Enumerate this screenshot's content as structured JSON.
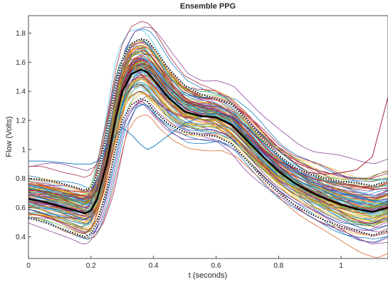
{
  "chart_data": {
    "type": "line",
    "title": "Ensemble PPG",
    "xlabel": "t (seconds)",
    "ylabel": "Flow (Volts)",
    "xlim": [
      0,
      1.15
    ],
    "ylim": [
      0.25,
      1.92
    ],
    "xticks": [
      {
        "value": 0,
        "label": "0"
      },
      {
        "value": 0.2,
        "label": "0.2"
      },
      {
        "value": 0.4,
        "label": "0.4"
      },
      {
        "value": 0.6,
        "label": "0.6"
      },
      {
        "value": 0.8,
        "label": "0.8"
      },
      {
        "value": 1.0,
        "label": "1"
      }
    ],
    "yticks": [
      {
        "value": 0.4,
        "label": "0.4"
      },
      {
        "value": 0.6,
        "label": "0.6"
      },
      {
        "value": 0.8,
        "label": "0.8"
      },
      {
        "value": 1.0,
        "label": "1"
      },
      {
        "value": 1.2,
        "label": "1.2"
      },
      {
        "value": 1.4,
        "label": "1.4"
      },
      {
        "value": 1.6,
        "label": "1.6"
      },
      {
        "value": 1.8,
        "label": "1.8"
      }
    ],
    "grid": false,
    "legend": "none",
    "colors": [
      "#0072bd",
      "#d95319",
      "#edb120",
      "#7e2f8e",
      "#77ac30",
      "#4dbeee",
      "#a2142f"
    ],
    "summary_x": [
      0,
      0.05,
      0.1,
      0.15,
      0.18,
      0.2,
      0.22,
      0.25,
      0.28,
      0.3,
      0.33,
      0.36,
      0.38,
      0.4,
      0.45,
      0.5,
      0.55,
      0.6,
      0.65,
      0.7,
      0.75,
      0.8,
      0.85,
      0.9,
      0.95,
      1.0,
      1.05,
      1.1,
      1.15
    ],
    "summary_series": [
      {
        "style": "mean",
        "color": "#000000",
        "values": [
          0.66,
          0.64,
          0.61,
          0.58,
          0.56,
          0.58,
          0.66,
          0.9,
          1.22,
          1.4,
          1.52,
          1.55,
          1.53,
          1.48,
          1.35,
          1.26,
          1.23,
          1.22,
          1.17,
          1.06,
          0.95,
          0.85,
          0.77,
          0.71,
          0.66,
          0.62,
          0.59,
          0.57,
          0.6
        ]
      },
      {
        "style": "upper-dotted",
        "color": "#000000",
        "values": [
          0.8,
          0.79,
          0.77,
          0.74,
          0.72,
          0.74,
          0.82,
          1.1,
          1.45,
          1.62,
          1.73,
          1.76,
          1.75,
          1.7,
          1.55,
          1.44,
          1.38,
          1.35,
          1.31,
          1.2,
          1.07,
          0.96,
          0.88,
          0.83,
          0.8,
          0.78,
          0.77,
          0.75,
          0.78
        ]
      },
      {
        "style": "lower-dotted",
        "color": "#000000",
        "values": [
          0.53,
          0.5,
          0.46,
          0.42,
          0.4,
          0.42,
          0.5,
          0.72,
          1.02,
          1.2,
          1.31,
          1.35,
          1.33,
          1.27,
          1.17,
          1.12,
          1.1,
          1.09,
          1.04,
          0.92,
          0.8,
          0.7,
          0.62,
          0.56,
          0.51,
          0.47,
          0.44,
          0.41,
          0.44
        ]
      },
      {
        "style": "outlier",
        "color": "#0072bd",
        "values": [
          0.92,
          0.92,
          0.91,
          0.9,
          0.9,
          0.9,
          0.92,
          1.01,
          1.1,
          1.15,
          1.1,
          1.03,
          1.0,
          1.02,
          1.1,
          1.18,
          1.22,
          1.25,
          1.23,
          1.15,
          1.05,
          0.95,
          0.85,
          0.78,
          0.73,
          0.7,
          0.68,
          0.65,
          0.63
        ]
      },
      {
        "style": "outlier",
        "color": "#a2142f",
        "values": [
          0.72,
          0.71,
          0.69,
          0.67,
          0.66,
          0.67,
          0.72,
          0.93,
          1.25,
          1.45,
          1.58,
          1.62,
          1.6,
          1.55,
          1.42,
          1.33,
          1.29,
          1.27,
          1.22,
          1.12,
          1.0,
          0.92,
          0.87,
          0.84,
          0.83,
          0.84,
          0.86,
          0.95,
          1.36
        ]
      }
    ]
  }
}
